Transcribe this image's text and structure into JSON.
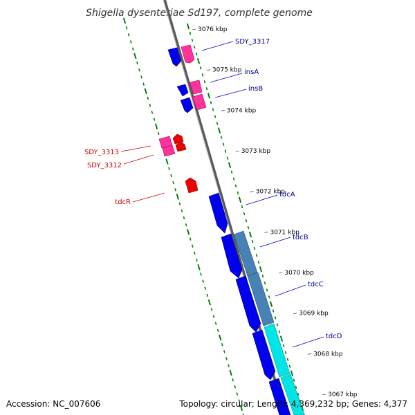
{
  "title": "Shigella dysenteriae Sd197, complete genome",
  "footer": {
    "accession": "Accession: NC_007606",
    "topology": "Topology: circular; Length: 4,369,232 bp; Genes: 4,377"
  },
  "kbp_ticks": [
    {
      "label": "3076 kbp",
      "t": 0.054
    },
    {
      "label": "3075 kbp",
      "t": 0.155
    },
    {
      "label": "3074 kbp",
      "t": 0.256
    },
    {
      "label": "3073 kbp",
      "t": 0.357
    },
    {
      "label": "3072 kbp",
      "t": 0.458
    },
    {
      "label": "3071 kbp",
      "t": 0.559
    },
    {
      "label": "3070 kbp",
      "t": 0.66
    },
    {
      "label": "3069 kbp",
      "t": 0.761
    },
    {
      "label": "3068 kbp",
      "t": 0.862
    },
    {
      "label": "3067 kbp",
      "t": 0.963
    }
  ],
  "colors": {
    "gene_label_forward": "#00008b",
    "gene_label_reverse": "#cc0000",
    "cds_forward": "#0000ee",
    "cds_reverse": "#ee0000",
    "operon_pink": "#ff3399",
    "operon_steel": "#4682b4",
    "operon_cyan": "#00e5e5",
    "gc_tick": "#008000",
    "backbone": "#808080"
  },
  "gene_labels": [
    {
      "name": "SDY_3317",
      "side": "right",
      "color": "#00008b"
    },
    {
      "name": "insA",
      "side": "right",
      "color": "#00008b"
    },
    {
      "name": "insB",
      "side": "right",
      "color": "#00008b"
    },
    {
      "name": "SDY_3313",
      "side": "left",
      "color": "#cc0000"
    },
    {
      "name": "SDY_3312",
      "side": "left",
      "color": "#cc0000"
    },
    {
      "name": "tdcR",
      "side": "left",
      "color": "#cc0000"
    },
    {
      "name": "tdcA",
      "side": "right",
      "color": "#00008b"
    },
    {
      "name": "tdcB",
      "side": "right",
      "color": "#00008b"
    },
    {
      "name": "tdcC",
      "side": "right",
      "color": "#00008b"
    },
    {
      "name": "tdcD",
      "side": "right",
      "color": "#00008b"
    }
  ]
}
